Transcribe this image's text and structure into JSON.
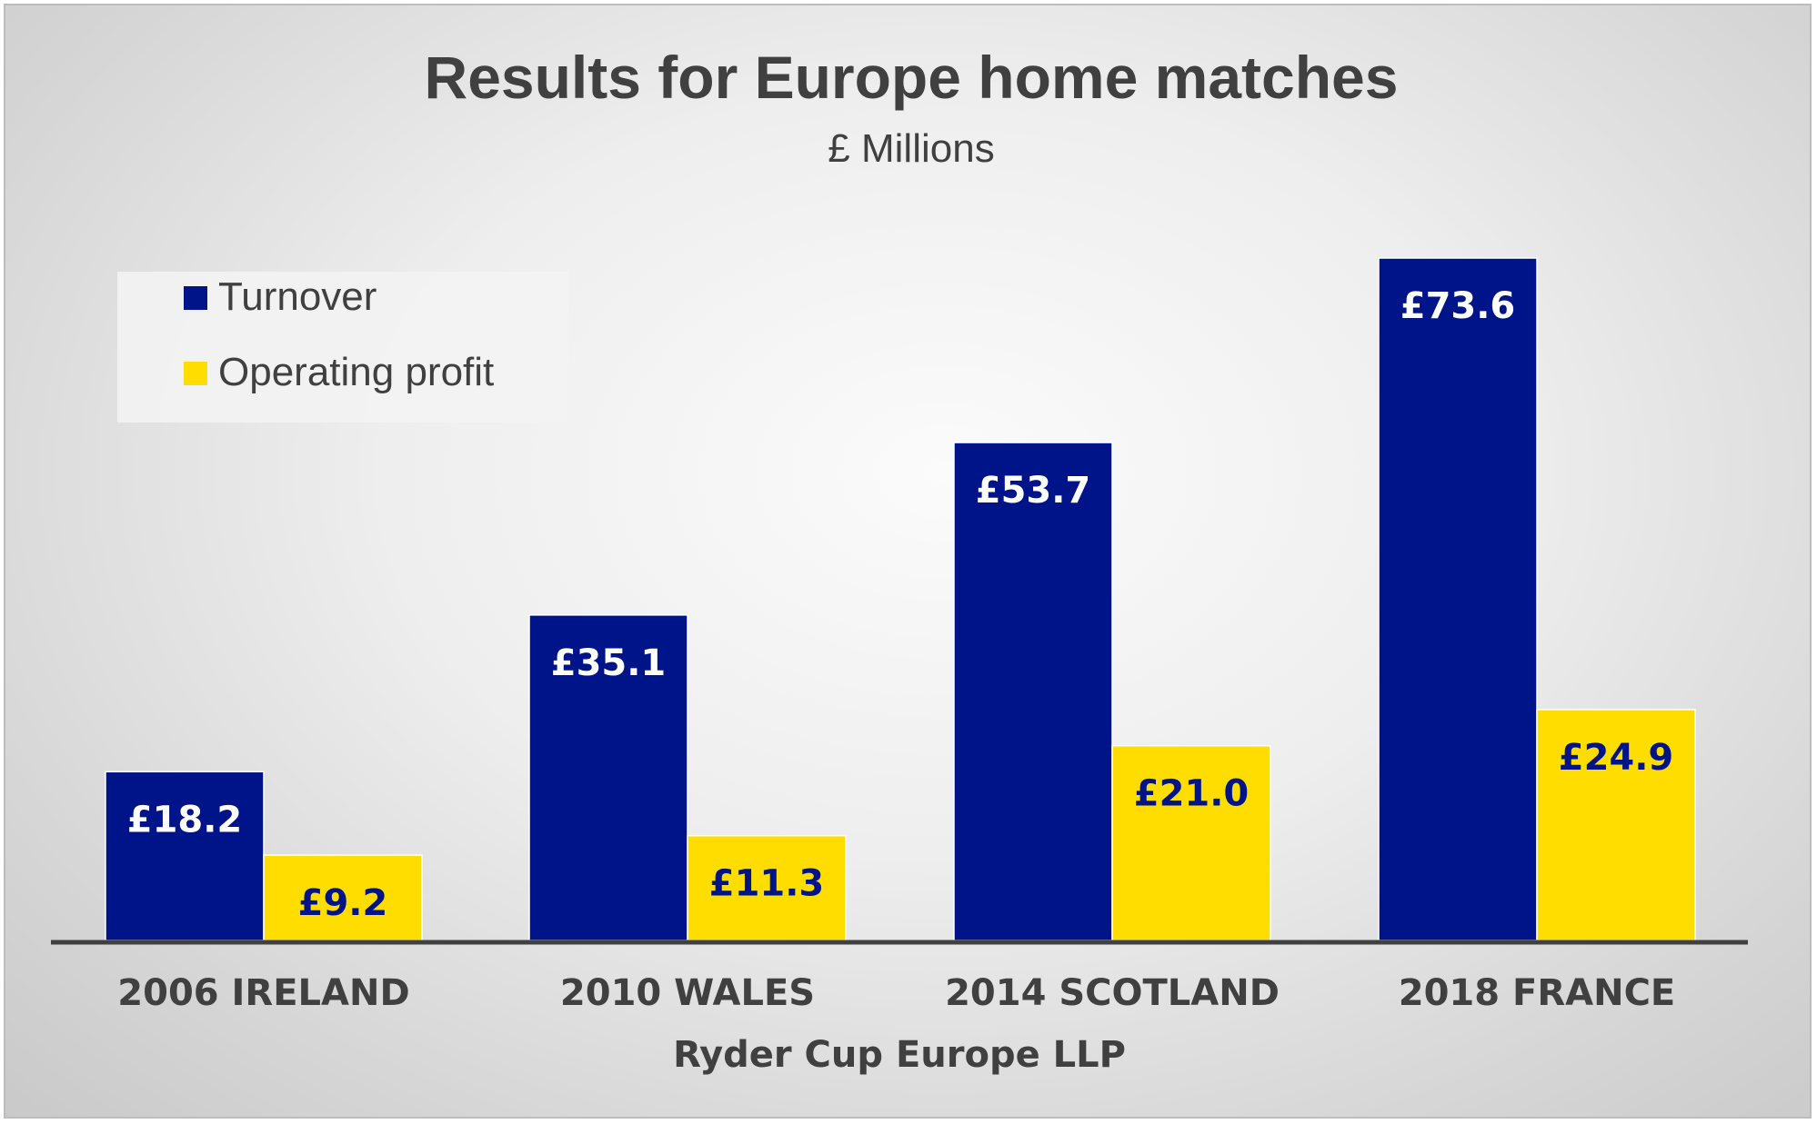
{
  "chart_data": {
    "type": "bar",
    "title": "Results for Europe home matches",
    "subtitle": "£ Millions",
    "xlabel": "Ryder Cup Europe LLP",
    "ylabel": "",
    "categories": [
      "2006 IRELAND",
      "2010 WALES",
      "2014 SCOTLAND",
      "2018 FRANCE"
    ],
    "series": [
      {
        "name": "Turnover",
        "color": "#001489",
        "label_color": "#ffffff",
        "values": [
          18.2,
          35.1,
          53.7,
          73.6
        ],
        "labels": [
          "£18.2",
          "£35.1",
          "£53.7",
          "£73.6"
        ]
      },
      {
        "name": "Operating profit",
        "color": "#ffdd00",
        "label_color": "#001489",
        "values": [
          9.2,
          11.3,
          21.0,
          24.9
        ],
        "labels": [
          "£9.2",
          "£11.3",
          "£21.0",
          "£24.9"
        ]
      }
    ],
    "ylim": [
      0,
      80
    ],
    "grid": false,
    "legend_position": "top-left",
    "axis_color": "#404040"
  }
}
